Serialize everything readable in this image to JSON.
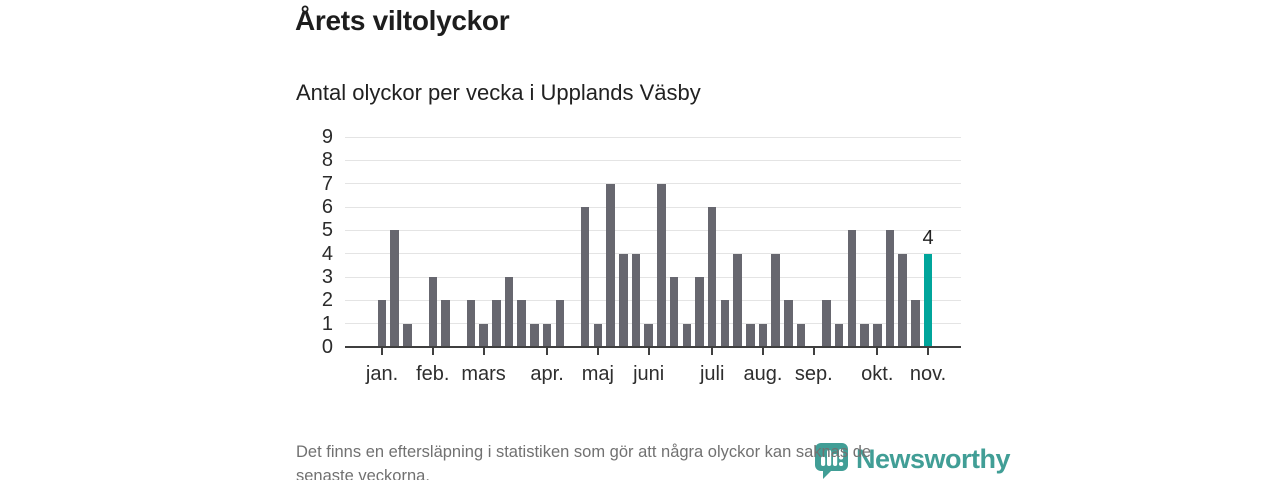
{
  "header": {
    "title": "Årets viltolyckor",
    "subtitle": "Antal olyckor per vecka i Upplands Väsby"
  },
  "chart_data": {
    "type": "bar",
    "title": "Årets viltolyckor",
    "subtitle": "Antal olyckor per vecka i Upplands Väsby",
    "x_unit": "vecka",
    "values": [
      2,
      5,
      1,
      0,
      3,
      2,
      0,
      2,
      1,
      2,
      3,
      2,
      1,
      1,
      2,
      0,
      6,
      1,
      7,
      4,
      4,
      1,
      7,
      3,
      1,
      3,
      6,
      2,
      4,
      1,
      1,
      4,
      2,
      1,
      0,
      2,
      1,
      5,
      1,
      1,
      5,
      4,
      2,
      4
    ],
    "x_months": [
      {
        "label": "jan.",
        "slot": 0
      },
      {
        "label": "feb.",
        "slot": 4
      },
      {
        "label": "mars",
        "slot": 8
      },
      {
        "label": "apr.",
        "slot": 13
      },
      {
        "label": "maj",
        "slot": 17
      },
      {
        "label": "juni",
        "slot": 21
      },
      {
        "label": "juli",
        "slot": 26
      },
      {
        "label": "aug.",
        "slot": 30
      },
      {
        "label": "sep.",
        "slot": 34
      },
      {
        "label": "okt.",
        "slot": 39
      },
      {
        "label": "nov.",
        "slot": 43
      }
    ],
    "ylim": [
      0,
      9
    ],
    "yticks": [
      0,
      1,
      2,
      3,
      4,
      5,
      6,
      7,
      8,
      9
    ],
    "grid": true,
    "legend": false,
    "highlight_index": 43,
    "point_label": {
      "index": 43,
      "text": "4"
    },
    "colors": {
      "bar": "#67676f",
      "highlight": "#00a59b",
      "gridline": "#e4e4e4",
      "axis": "#3f3f3f",
      "tick_label": "#2e2e2e"
    }
  },
  "footer": {
    "line1": "Det finns en eftersläpning i statistiken som gör att några olyckor kan saknas de",
    "line2": "senaste veckorna."
  },
  "logo": {
    "wordmark": "Newsworthy",
    "color": "#3a9b92",
    "icon": "newsworthy-bubble-chart-icon"
  }
}
